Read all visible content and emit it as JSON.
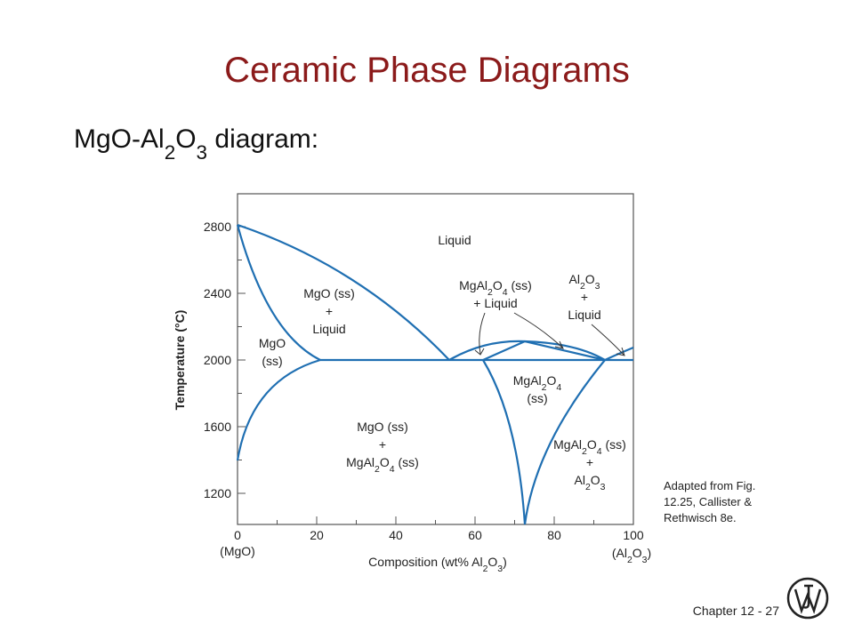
{
  "title": "Ceramic Phase Diagrams",
  "subtitle": [
    "MgO-Al",
    "2",
    "O",
    "3",
    " diagram:"
  ],
  "diagram": {
    "y_label": "Temperature (°C)",
    "x_label": [
      "Composition (wt% Al",
      "2",
      "O",
      "3",
      ")"
    ],
    "y_ticks": [
      "2800",
      "2400",
      "2000",
      "1600",
      "1200"
    ],
    "x_ticks": [
      "0",
      "20",
      "40",
      "60",
      "80",
      "100"
    ],
    "x_end_labels": [
      [
        "(MgO)"
      ],
      [
        "(Al",
        "2",
        "O",
        "3",
        ")"
      ]
    ],
    "regions": [
      [
        [
          "Liquid"
        ]
      ],
      [
        [
          "MgO (ss)"
        ],
        [
          "+"
        ],
        [
          "Liquid"
        ]
      ],
      [
        [
          "MgO"
        ],
        [
          "(ss)"
        ]
      ],
      [
        [
          "MgAl",
          "2",
          "O",
          "4",
          " (ss)"
        ],
        [
          "+ Liquid"
        ]
      ],
      [
        [
          "Al",
          "2",
          "O",
          "3"
        ],
        [
          "+"
        ],
        [
          "Liquid"
        ]
      ],
      [
        [
          "MgAl",
          "2",
          "O",
          "4"
        ],
        [
          "(ss)"
        ]
      ],
      [
        [
          "MgO (ss)"
        ],
        [
          "+"
        ],
        [
          "MgAl",
          "2",
          "O",
          "4",
          " (ss)"
        ]
      ],
      [
        [
          "MgAl",
          "2",
          "O",
          "4",
          " (ss)"
        ],
        [
          "+"
        ],
        [
          "Al",
          "2",
          "O",
          "3"
        ]
      ]
    ]
  },
  "caption": [
    "Adapted from Fig.",
    "12.25, Callister &",
    "Rethwisch 8e."
  ],
  "footer": "Chapter 12 - 27"
}
